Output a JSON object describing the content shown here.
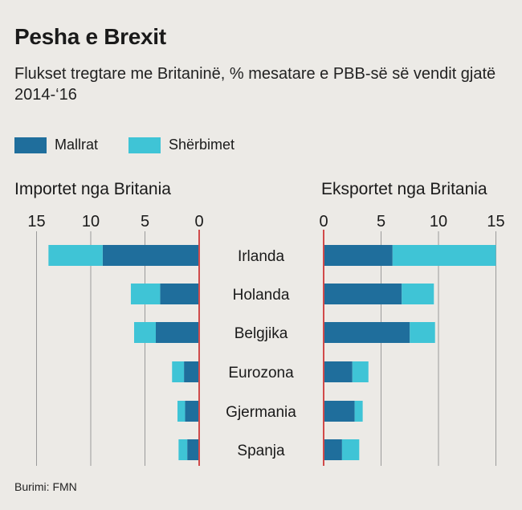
{
  "title": "Pesha e Brexit",
  "subtitle": "Flukset tregtare me Britaninë, % mesatare e PBB-së së vendit gjatë 2014-‘16",
  "source": "Burimi: FMN",
  "colors": {
    "goods": "#1f6e9c",
    "services": "#3fc4d6",
    "zero_line": "#d04a4a",
    "grid": "#9a9a9a"
  },
  "chart_data": {
    "type": "bar",
    "legend": [
      {
        "key": "goods",
        "label": "Mallrat"
      },
      {
        "key": "services",
        "label": "Shërbimet"
      }
    ],
    "categories": [
      "Irlanda",
      "Holanda",
      "Belgjika",
      "Eurozona",
      "Gjermania",
      "Spanja"
    ],
    "panels": [
      {
        "id": "imports",
        "title": "Importet nga Britania",
        "direction": "left",
        "xlim": [
          0,
          15
        ],
        "ticks": [
          15,
          10,
          5,
          0
        ],
        "series": [
          {
            "name": "Mallrat",
            "key": "goods",
            "values": [
              8.9,
              3.6,
              4.0,
              1.4,
              1.3,
              1.1
            ]
          },
          {
            "name": "Shërbimet",
            "key": "services",
            "values": [
              5.0,
              2.7,
              2.0,
              1.1,
              0.7,
              0.8
            ]
          }
        ]
      },
      {
        "id": "exports",
        "title": "Eksportet nga Britania",
        "direction": "right",
        "xlim": [
          0,
          15
        ],
        "ticks": [
          0,
          5,
          10,
          15
        ],
        "series": [
          {
            "name": "Mallrat",
            "key": "goods",
            "values": [
              6.0,
              6.8,
              7.5,
              2.5,
              2.7,
              1.6
            ]
          },
          {
            "name": "Shërbimet",
            "key": "services",
            "values": [
              9.0,
              2.8,
              2.2,
              1.4,
              0.7,
              1.5
            ]
          }
        ]
      }
    ]
  }
}
